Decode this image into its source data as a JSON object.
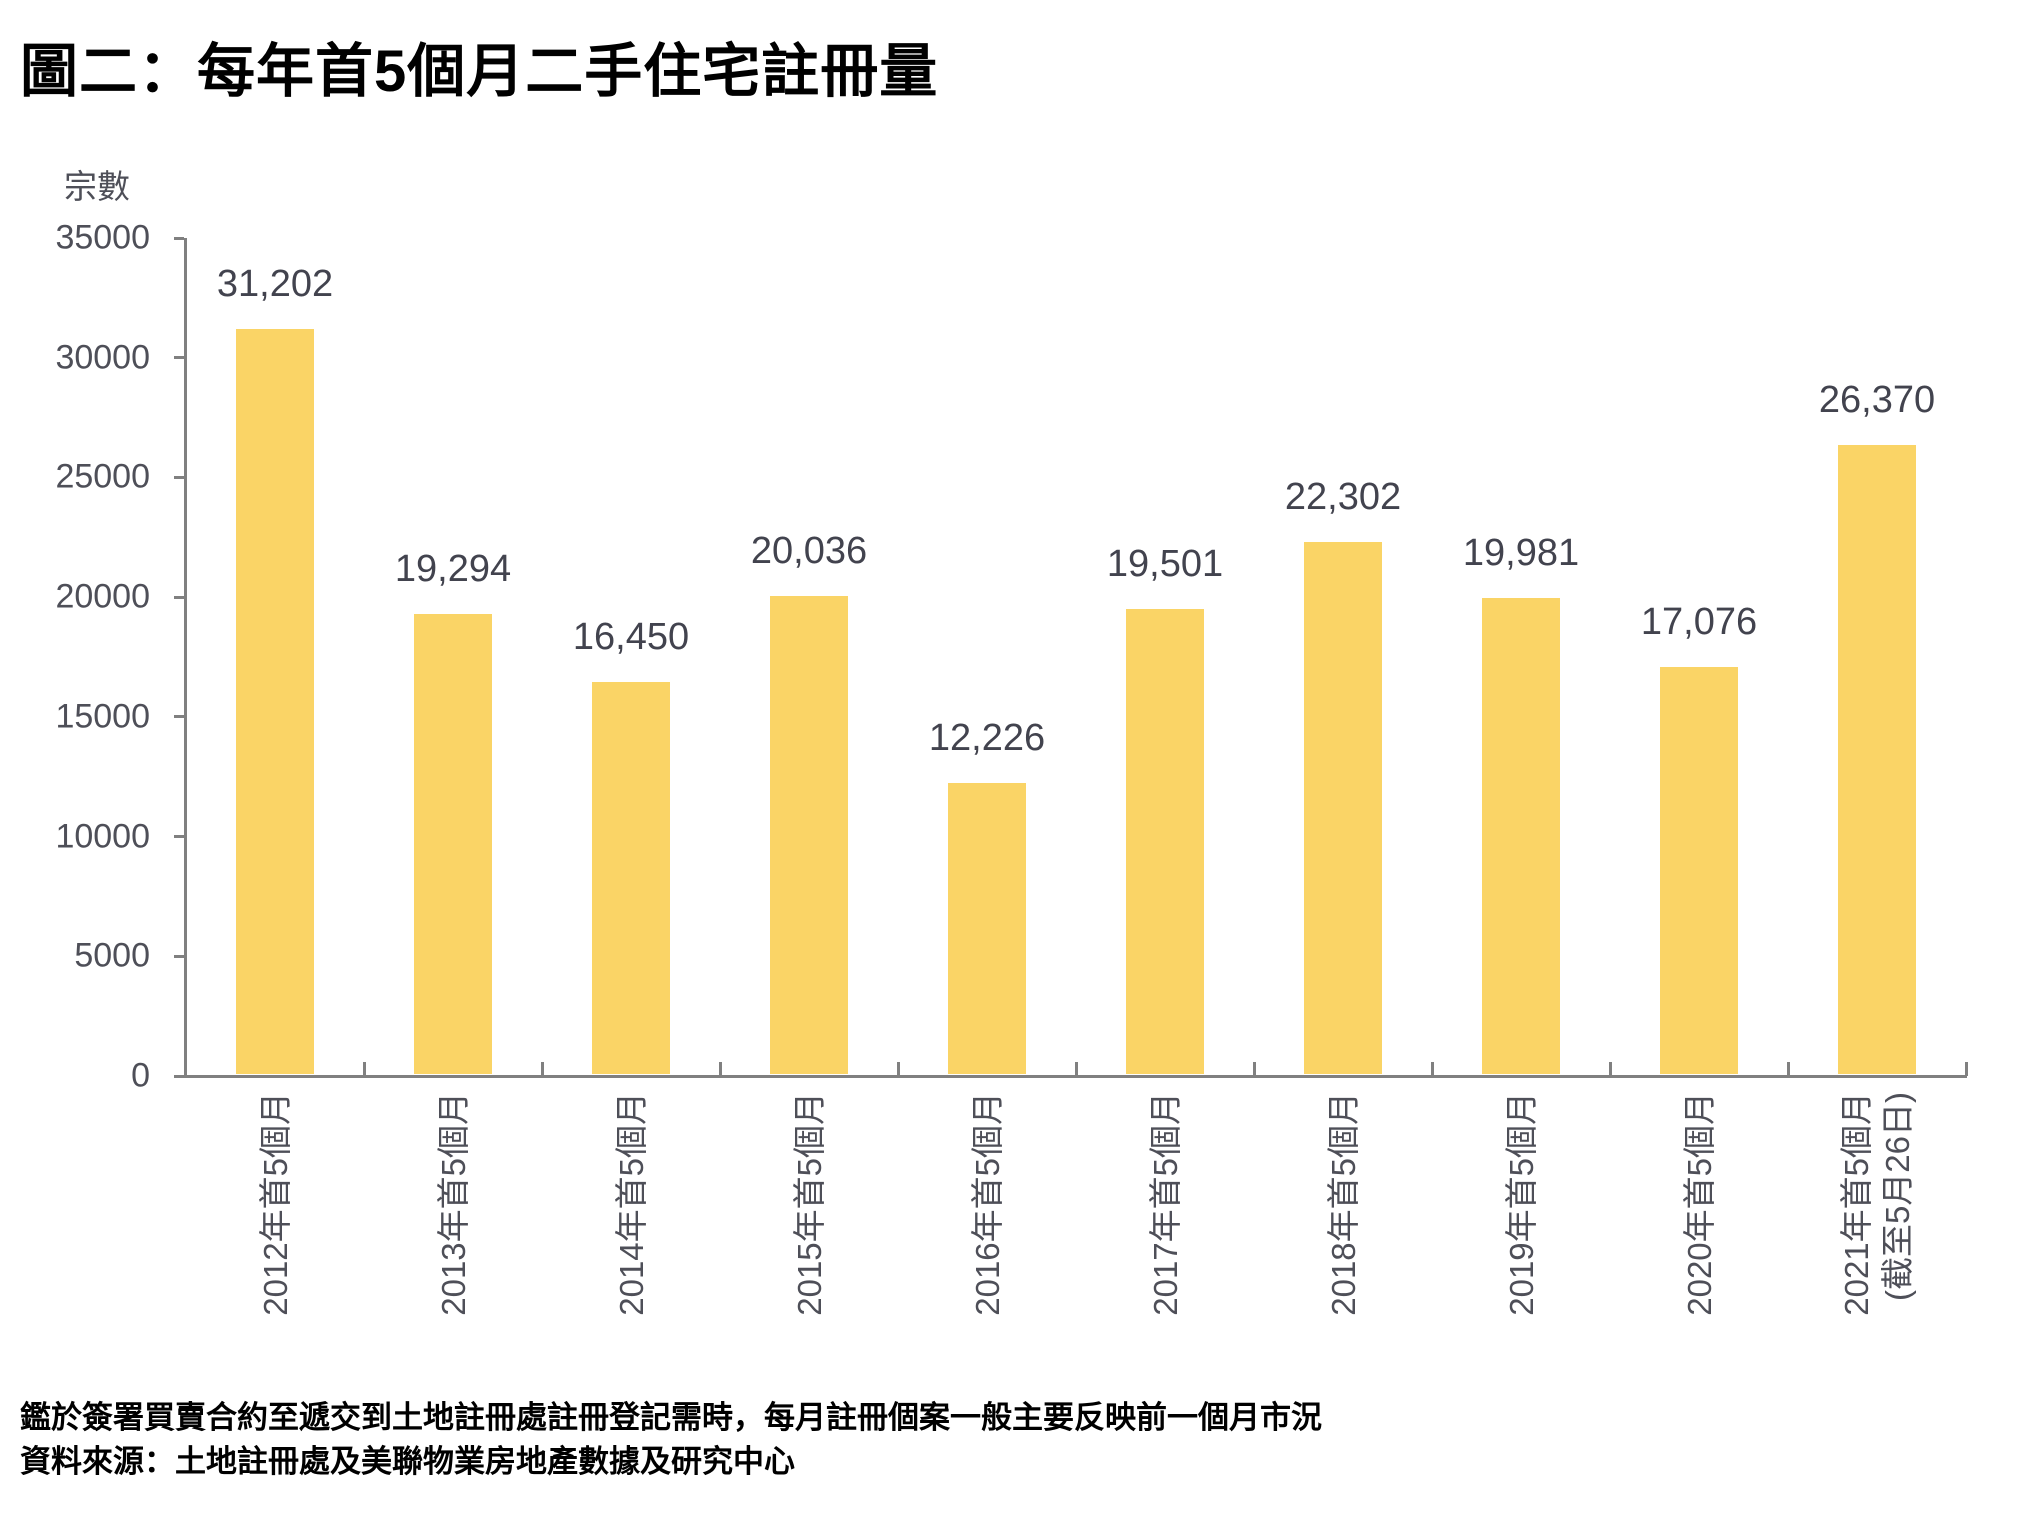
{
  "page": {
    "footnotes": [
      "鑑於簽署買賣合約至遞交到土地註冊處註冊登記需時，每月註冊個案一般主要反映前一個月市況",
      "資料來源：土地註冊處及美聯物業房地產數據及研究中心"
    ]
  },
  "chart_data": {
    "type": "bar",
    "title": "圖二：每年首5個月二手住宅註冊量",
    "ylabel": "宗數",
    "xlabel": "",
    "categories": [
      "2012年首5個月",
      "2013年首5個月",
      "2014年首5個月",
      "2015年首5個月",
      "2016年首5個月",
      "2017年首5個月",
      "2018年首5個月",
      "2019年首5個月",
      "2020年首5個月",
      "2021年首5個月\n(截至5月26日)"
    ],
    "values": [
      31202,
      19294,
      16450,
      20036,
      12226,
      19501,
      22302,
      19981,
      17076,
      26370
    ],
    "data_labels": [
      "31,202",
      "19,294",
      "16,450",
      "20,036",
      "12,226",
      "19,501",
      "22,302",
      "19,981",
      "17,076",
      "26,370"
    ],
    "ylim": [
      0,
      35000
    ],
    "ytick_step": 5000,
    "yticks": [
      0,
      5000,
      10000,
      15000,
      20000,
      25000,
      30000,
      35000
    ],
    "grid": false,
    "legend": null,
    "x_label_rotation": "rotate-up-90",
    "bar_color": "#FAD466",
    "value_label_color": "#42434E",
    "tick_label_color": "#4E4F58",
    "axis_color": "#808080",
    "title_color": "#000000"
  }
}
